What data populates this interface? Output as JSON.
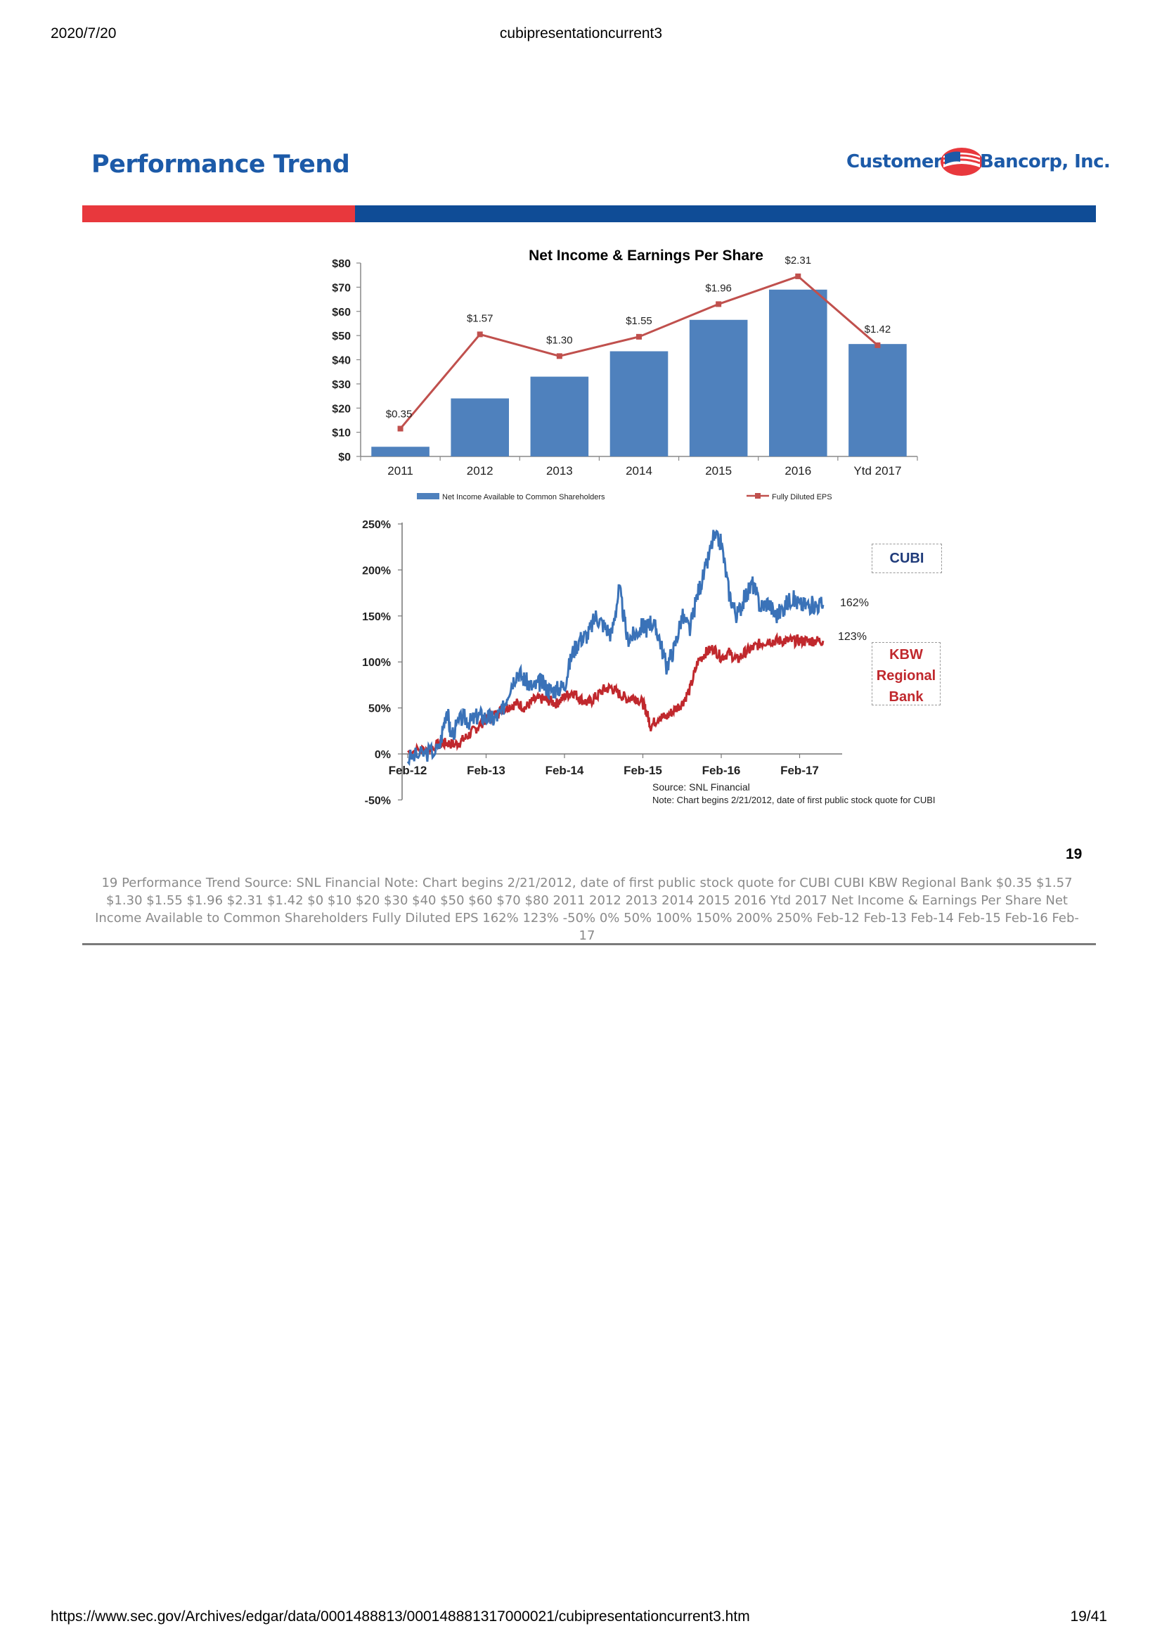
{
  "print_header": {
    "date": "2020/7/20",
    "doc_title": "cubipresentationcurrent3"
  },
  "print_footer": {
    "url": "https://www.sec.gov/Archives/edgar/data/0001488813/000148881317000021/cubipresentationcurrent3.htm",
    "page": "19/41"
  },
  "slide": {
    "title": "Performance Trend",
    "logo_left": "Customers",
    "logo_right": "Bancorp, Inc.",
    "page_number": "19",
    "colors": {
      "title_blue": "#1c5aa8",
      "band_red": "#e8383d",
      "band_blue": "#0f4c96"
    }
  },
  "boxes": {
    "cubi": "CUBI",
    "kbw_lines": [
      "KBW",
      "Regional",
      "Bank"
    ]
  },
  "caption": "19  Performance Trend  Source: SNL Financial  Note: Chart begins 2/21/2012, date of first public stock quote for CUBI  CUBI  KBW  Regional  Bank  $0.35 $1.57 $1.30 $1.55 $1.96 $2.31 $1.42 $0 $10 $20 $30 $40 $50 $60 $70 $80 2011 2012 2013 2014 2015 2016 Ytd 2017 Net Income & Earnings Per Share Net Income Available to Common Shareholders Fully Diluted EPS 162%  123%  -50% 0% 50% 100% 150% 200% 250% Feb-12 Feb-13 Feb-14 Feb-15 Feb-16 Feb-17",
  "chart_data": [
    {
      "type": "bar",
      "title": "Net Income & Earnings Per Share",
      "categories": [
        "2011",
        "2012",
        "2013",
        "2014",
        "2015",
        "2016",
        "Ytd 2017"
      ],
      "y_ticks": [
        "$0",
        "$10",
        "$20",
        "$30",
        "$40",
        "$50",
        "$60",
        "$70",
        "$80"
      ],
      "ylim": [
        0,
        80
      ],
      "series": [
        {
          "name": "Net Income Available to Common Shareholders",
          "kind": "bar",
          "color": "#4f81bd",
          "values": [
            4,
            24,
            33,
            43.5,
            56.5,
            69,
            46.5
          ]
        },
        {
          "name": "Fully Diluted EPS",
          "kind": "line",
          "color": "#c0504d",
          "values": [
            0.35,
            1.57,
            1.3,
            1.55,
            1.96,
            2.31,
            1.42
          ],
          "labels": [
            "$0.35",
            "$1.57",
            "$1.30",
            "$1.55",
            "$1.96",
            "$2.31",
            "$1.42"
          ],
          "plot_positions_on_left_axis": [
            11.5,
            50.5,
            41.5,
            49.5,
            63,
            74.5,
            46
          ]
        }
      ],
      "legend": "bottom"
    },
    {
      "type": "line",
      "x_ticks": [
        "Feb-12",
        "Feb-13",
        "Feb-14",
        "Feb-15",
        "Feb-16",
        "Feb-17"
      ],
      "y_ticks": [
        "-50%",
        "0%",
        "50%",
        "100%",
        "150%",
        "200%",
        "250%"
      ],
      "ylim": [
        -50,
        250
      ],
      "series": [
        {
          "name": "CUBI",
          "color": "#3a72b8",
          "end_label": "162%",
          "x": [
            0,
            0.2,
            0.4,
            0.5,
            0.55,
            0.7,
            0.8,
            0.9,
            1.0,
            1.1,
            1.2,
            1.3,
            1.4,
            1.5,
            1.6,
            1.7,
            1.8,
            1.9,
            2.0,
            2.1,
            2.2,
            2.3,
            2.4,
            2.5,
            2.6,
            2.7,
            2.8,
            2.9,
            3.0,
            3.05,
            3.1,
            3.2,
            3.3,
            3.4,
            3.5,
            3.6,
            3.7,
            3.8,
            3.9,
            4.0,
            4.1,
            4.2,
            4.3,
            4.4,
            4.5,
            4.6,
            4.7,
            4.8,
            4.9,
            5.0,
            5.1,
            5.2,
            5.3
          ],
          "y": [
            -5,
            0,
            5,
            50,
            20,
            40,
            35,
            42,
            40,
            38,
            45,
            72,
            90,
            80,
            72,
            78,
            70,
            70,
            75,
            110,
            125,
            130,
            150,
            140,
            130,
            180,
            125,
            130,
            140,
            135,
            145,
            130,
            95,
            115,
            150,
            135,
            175,
            200,
            235,
            230,
            175,
            150,
            170,
            185,
            160,
            165,
            150,
            160,
            170,
            162,
            162,
            162,
            162
          ]
        },
        {
          "name": "KBW Regional Bank",
          "color": "#c0282d",
          "end_label": "123%",
          "x": [
            0,
            0.2,
            0.4,
            0.5,
            0.6,
            0.7,
            0.8,
            0.9,
            1.0,
            1.1,
            1.2,
            1.3,
            1.4,
            1.5,
            1.6,
            1.7,
            1.8,
            1.9,
            2.0,
            2.1,
            2.2,
            2.3,
            2.4,
            2.5,
            2.6,
            2.7,
            2.8,
            2.9,
            3.0,
            3.05,
            3.1,
            3.2,
            3.3,
            3.4,
            3.5,
            3.6,
            3.7,
            3.8,
            3.9,
            4.0,
            4.1,
            4.2,
            4.3,
            4.4,
            4.5,
            4.6,
            4.7,
            4.8,
            4.9,
            5.0,
            5.1,
            5.2,
            5.3
          ],
          "y": [
            2,
            5,
            10,
            12,
            10,
            15,
            22,
            30,
            38,
            42,
            48,
            52,
            55,
            50,
            58,
            60,
            58,
            55,
            62,
            68,
            60,
            55,
            62,
            70,
            72,
            65,
            60,
            62,
            55,
            45,
            30,
            40,
            40,
            48,
            55,
            70,
            100,
            110,
            115,
            105,
            110,
            102,
            110,
            115,
            120,
            123,
            123,
            123,
            123,
            123,
            123,
            123,
            123
          ]
        }
      ],
      "source_note": "Source: SNL Financial",
      "note": "Note: Chart begins 2/21/2012, date of first public stock quote for CUBI"
    }
  ]
}
